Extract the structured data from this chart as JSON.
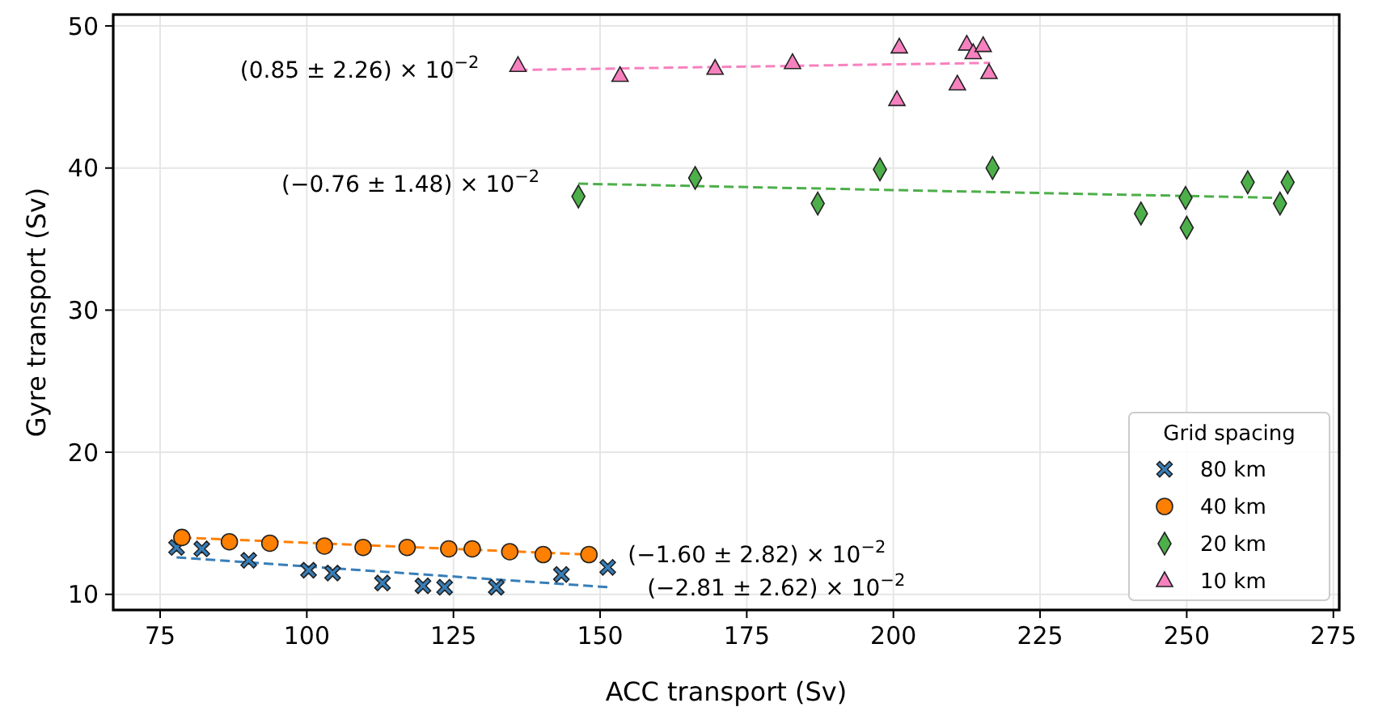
{
  "chart_data": {
    "type": "scatter",
    "xlabel": "ACC transport (Sv)",
    "ylabel": "Gyre transport (Sv)",
    "legend_title": "Grid spacing",
    "legend": "bottom right",
    "grid": true,
    "xlim": [
      67,
      276
    ],
    "ylim": [
      8.9,
      50.8
    ],
    "xticks": [
      75,
      100,
      125,
      150,
      175,
      200,
      225,
      250,
      275
    ],
    "yticks": [
      10,
      20,
      30,
      40,
      50
    ],
    "series": [
      {
        "name": "80 km",
        "color": "#377eb8",
        "marker": "cross",
        "x": [
          77.8,
          82.1,
          90.1,
          100.3,
          104.4,
          112.9,
          119.8,
          123.5,
          132.3,
          143.4,
          151.3
        ],
        "values": [
          13.3,
          13.2,
          12.4,
          11.7,
          11.5,
          10.8,
          10.6,
          10.5,
          10.5,
          11.4,
          11.9
        ]
      },
      {
        "name": "40 km",
        "color": "#ff7f00",
        "marker": "circle",
        "x": [
          78.7,
          86.8,
          93.7,
          103.0,
          109.6,
          117.1,
          124.2,
          128.2,
          134.6,
          140.3,
          148.1
        ],
        "values": [
          14.0,
          13.7,
          13.6,
          13.4,
          13.3,
          13.3,
          13.2,
          13.2,
          13.0,
          12.8,
          12.8
        ]
      },
      {
        "name": "20 km",
        "color": "#4daf4a",
        "marker": "diamond",
        "x": [
          146.3,
          166.2,
          187.1,
          197.7,
          216.9,
          242.2,
          249.8,
          250.0,
          260.4,
          265.9,
          267.2
        ],
        "values": [
          38.0,
          39.3,
          37.5,
          39.9,
          40.0,
          36.8,
          37.9,
          35.8,
          39.0,
          37.5,
          39.0
        ]
      },
      {
        "name": "10 km",
        "color": "#f781bf",
        "marker": "triangle",
        "x": [
          136.0,
          153.4,
          169.6,
          182.8,
          201.0,
          200.6,
          210.9,
          212.5,
          213.6,
          215.3,
          216.3
        ],
        "values": [
          47.2,
          46.5,
          47.0,
          47.4,
          48.5,
          44.8,
          45.9,
          48.7,
          48.1,
          48.6,
          46.7
        ]
      },
      {
        "type": "line",
        "line_style": "dashed",
        "color": "#377eb8",
        "x": [
          77.8,
          151.4
        ],
        "values": [
          12.6,
          10.5
        ]
      },
      {
        "type": "line",
        "line_style": "dashed",
        "color": "#ff7f00",
        "x": [
          78.7,
          148.1
        ],
        "values": [
          14.0,
          12.8
        ]
      },
      {
        "type": "line",
        "line_style": "dashed",
        "color": "#4daf4a",
        "x": [
          146.3,
          265.9
        ],
        "values": [
          38.9,
          37.9
        ]
      },
      {
        "type": "line",
        "line_style": "dashed",
        "color": "#f781bf",
        "x": [
          136.0,
          216.5
        ],
        "values": [
          46.9,
          47.4
        ]
      }
    ],
    "annotations": [
      {
        "text": "(0.85 ± 2.26) × 10$^{−2}$",
        "x": 136.0,
        "y": 46.9
      },
      {
        "text": "(−0.76 ± 1.48) × 10$^{−2}$",
        "x": 146.3,
        "y": 38.9
      },
      {
        "text": "(−1.60 ± 2.82) × 10$^{−2}$",
        "x": 148.1,
        "y": 12.8
      },
      {
        "text": "(−2.81 ± 2.62) × 10$^{−2}$",
        "x": 151.4,
        "y": 10.5
      }
    ]
  }
}
